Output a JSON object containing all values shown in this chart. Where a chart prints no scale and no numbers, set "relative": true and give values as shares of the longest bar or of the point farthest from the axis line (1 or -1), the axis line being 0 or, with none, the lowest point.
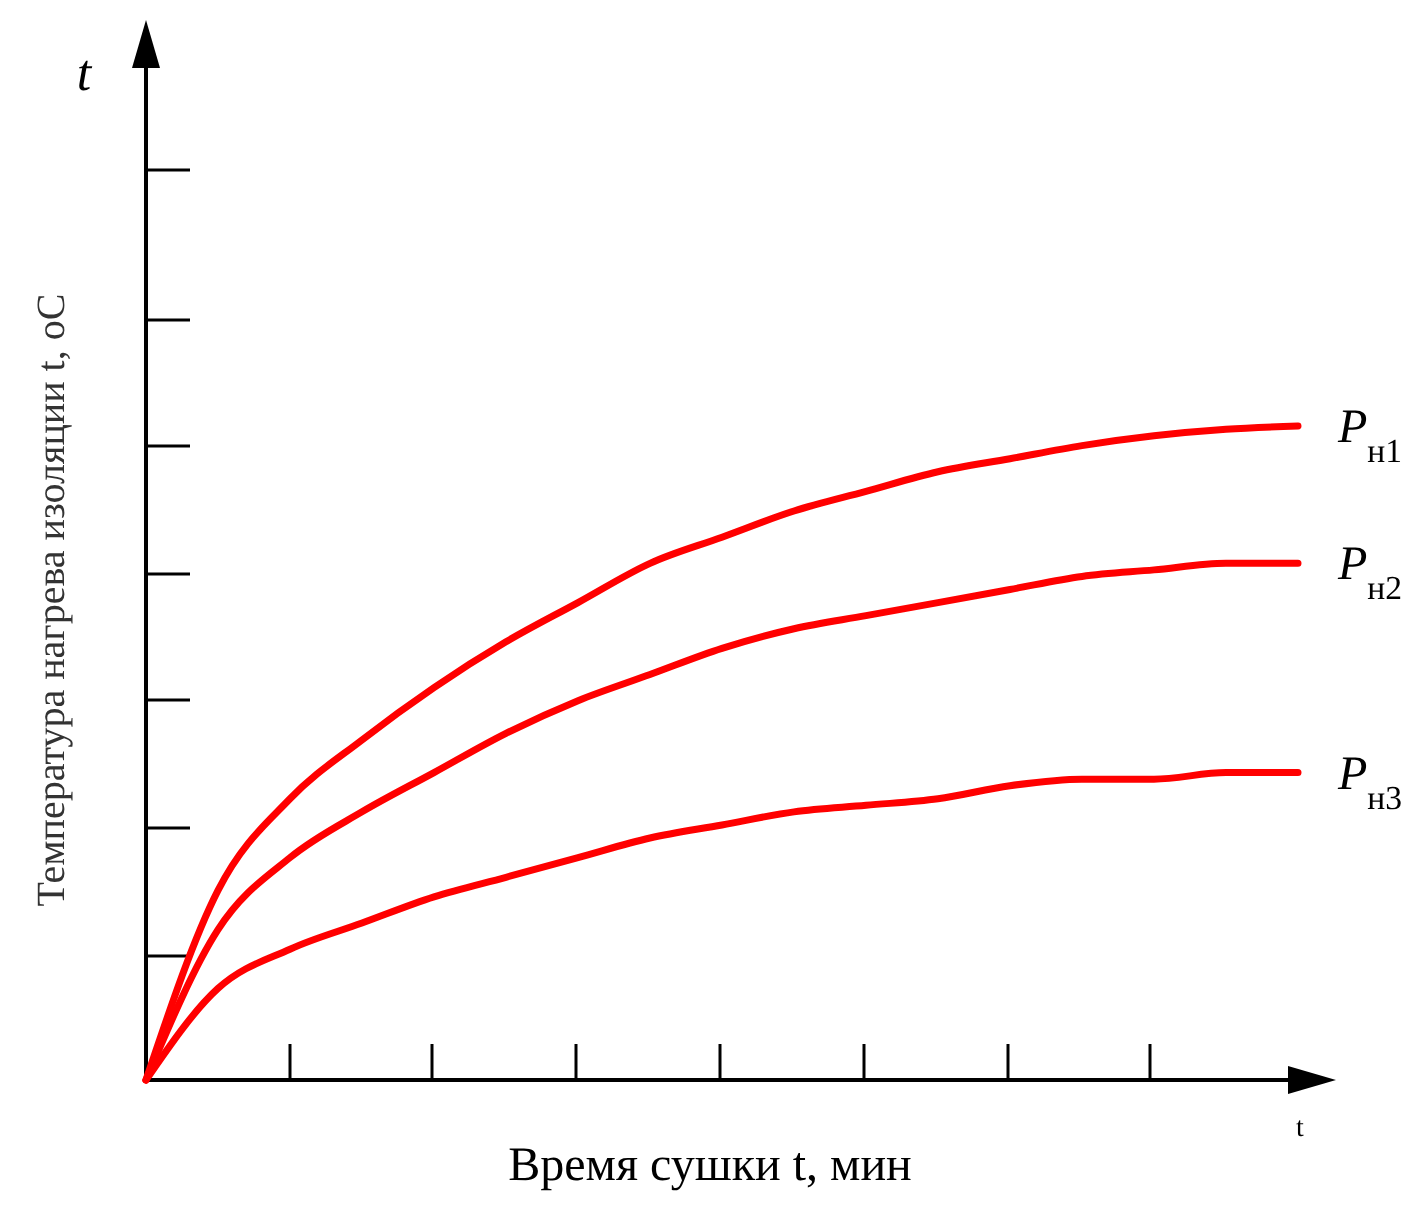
{
  "chart_data": {
    "type": "line",
    "relative": true,
    "xlabel": "Время сушки t, мин",
    "ylabel": "Температура нагрева изоляции t, оС",
    "annotations": [
      "t",
      "t"
    ],
    "categories": [
      null,
      null,
      null,
      null,
      null,
      null,
      null,
      null,
      null,
      null,
      null,
      null,
      null,
      null,
      null,
      null,
      null
    ],
    "series": [
      {
        "name": "P$_{н1}$",
        "color": "#ff0000",
        "values": [
          0,
          0.29,
          0.43,
          0.52,
          0.6,
          0.67,
          0.73,
          0.79,
          0.83,
          0.87,
          0.9,
          0.93,
          0.95,
          0.97,
          0.985,
          0.995,
          1
        ]
      },
      {
        "name": "P$_{н2}$",
        "color": "#ff0000",
        "values": [
          0,
          0.23,
          0.34,
          0.41,
          0.47,
          0.53,
          0.58,
          0.62,
          0.66,
          0.69,
          0.71,
          0.73,
          0.75,
          0.77,
          0.78,
          0.79,
          0.79
        ]
      },
      {
        "name": "P$_{н3}$",
        "color": "#ff0000",
        "values": [
          0,
          0.14,
          0.2,
          0.24,
          0.28,
          0.31,
          0.34,
          0.37,
          0.39,
          0.41,
          0.42,
          0.43,
          0.45,
          0.46,
          0.46,
          0.47,
          0.47
        ]
      }
    ]
  }
}
